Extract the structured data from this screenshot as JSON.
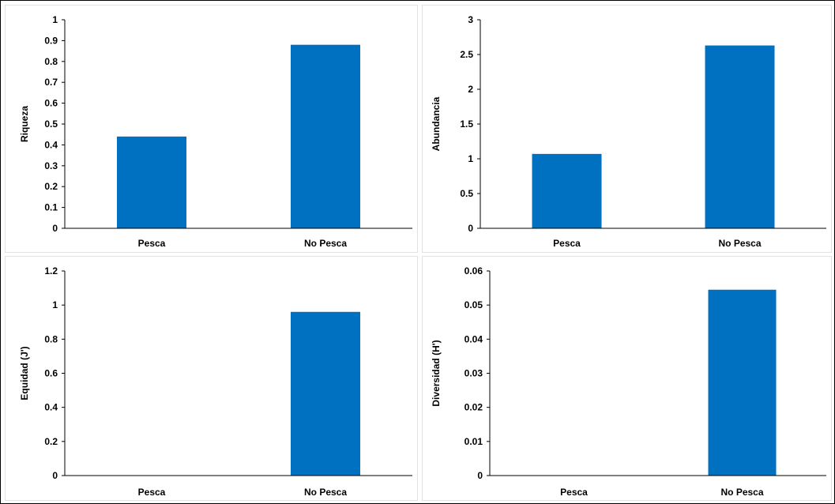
{
  "colors": {
    "bar": "#0070c0",
    "axis": "#000000",
    "panel_border": "#e2e2e2"
  },
  "chart_data": [
    {
      "type": "bar",
      "categories": [
        "Pesca",
        "No Pesca"
      ],
      "values": [
        0.44,
        0.88
      ],
      "ylabel": "Riqueza",
      "ylim": [
        0,
        1
      ],
      "yticks": [
        "0",
        "0.1",
        "0.2",
        "0.3",
        "0.4",
        "0.5",
        "0.6",
        "0.7",
        "0.8",
        "0.9",
        "1"
      ],
      "ytick_values": [
        0,
        0.1,
        0.2,
        0.3,
        0.4,
        0.5,
        0.6,
        0.7,
        0.8,
        0.9,
        1
      ],
      "grid": false
    },
    {
      "type": "bar",
      "categories": [
        "Pesca",
        "No Pesca"
      ],
      "values": [
        1.07,
        2.63
      ],
      "ylabel": "Abundancia",
      "ylim": [
        0,
        3
      ],
      "yticks": [
        "0",
        "0.5",
        "1",
        "1.5",
        "2",
        "2.5",
        "3"
      ],
      "ytick_values": [
        0,
        0.5,
        1,
        1.5,
        2,
        2.5,
        3
      ],
      "grid": false
    },
    {
      "type": "bar",
      "categories": [
        "Pesca",
        "No Pesca"
      ],
      "values": [
        0,
        0.96
      ],
      "ylabel": "Equidad (J')",
      "ylim": [
        0,
        1.2
      ],
      "yticks": [
        "0",
        "0.2",
        "0.4",
        "0.6",
        "0.8",
        "1",
        "1.2"
      ],
      "ytick_values": [
        0,
        0.2,
        0.4,
        0.6,
        0.8,
        1,
        1.2
      ],
      "grid": false
    },
    {
      "type": "bar",
      "categories": [
        "Pesca",
        "No Pesca"
      ],
      "values": [
        0,
        0.0545
      ],
      "ylabel": "Diversidad (H')",
      "ylim": [
        0,
        0.06
      ],
      "yticks": [
        "0",
        "0.01",
        "0.02",
        "0.03",
        "0.04",
        "0.05",
        "0.06"
      ],
      "ytick_values": [
        0,
        0.01,
        0.02,
        0.03,
        0.04,
        0.05,
        0.06
      ],
      "grid": false
    }
  ]
}
